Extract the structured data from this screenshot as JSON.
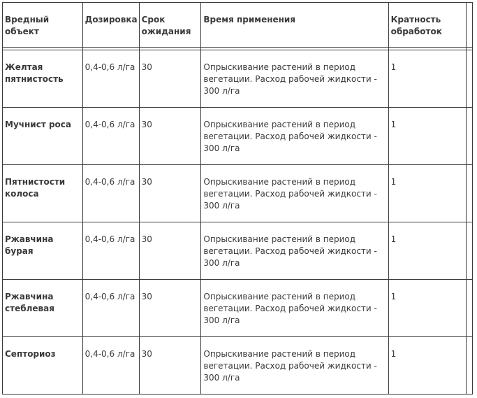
{
  "headers": [
    "Вредный объект",
    "Дозировка",
    "Срок ожидания",
    "Время применения",
    "Кратность обработок",
    ""
  ],
  "rows": [
    {
      "object": "Желтая пятнистость",
      "dose": "0,4-0,6 л/га",
      "wait": "30",
      "time": "Опрыскивание растений в период вегетации. Расход рабочей жидкости - 300 л/га",
      "count": "1"
    },
    {
      "object": "Мучнист роса",
      "dose": "0,4-0,6 л/га",
      "wait": "30",
      "time": "Опрыскивание растений в период вегетации. Расход рабочей жидкости - 300 л/га",
      "count": "1"
    },
    {
      "object": "Пятнистости колоса",
      "dose": "0,4-0,6 л/га",
      "wait": "30",
      "time": "Опрыскивание растений в период вегетации. Расход рабочей жидкости - 300 л/га",
      "count": "1"
    },
    {
      "object": "Ржавчина бурая",
      "dose": "0,4-0,6 л/га",
      "wait": "30",
      "time": "Опрыскивание растений в период вегетации. Расход рабочей жидкости - 300 л/га",
      "count": "1"
    },
    {
      "object": "Ржавчина стеблевая",
      "dose": "0,4-0,6 л/га",
      "wait": "30",
      "time": "Опрыскивание растений в период вегетации. Расход рабочей жидкости - 300 л/га",
      "count": "1"
    },
    {
      "object": "Септориоз",
      "dose": "0,4-0,6 л/га",
      "wait": "30",
      "time": "Опрыскивание растений в период вегетации. Расход рабочей жидкости - 300 л/га",
      "count": "1"
    }
  ]
}
